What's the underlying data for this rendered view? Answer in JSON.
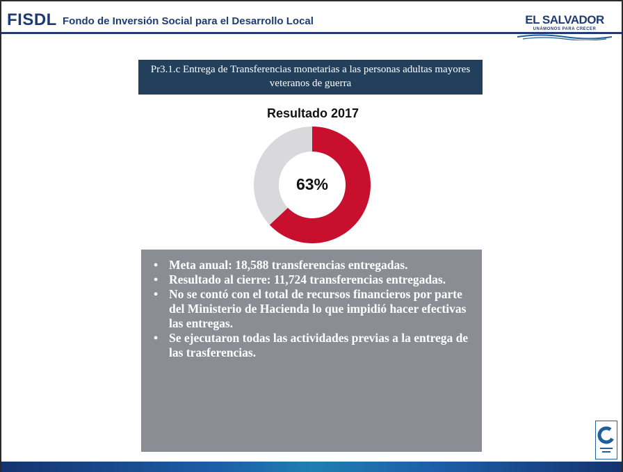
{
  "header": {
    "logo_text": "FISDL",
    "org_name": "Fondo de Inversión Social para el Desarrollo Local",
    "country_name": "EL SALVADOR",
    "country_tagline": "UNÁMONOS PARA CRECER"
  },
  "slide": {
    "title": "Pr3.1.c Entrega de Transferencias monetarias a las personas adultas mayores veteranos de guerra"
  },
  "chart_data": {
    "type": "pie",
    "variant": "donut",
    "title": "Resultado 2017",
    "center_label": "63%",
    "slices": [
      {
        "value": 63,
        "color": "#c8102e"
      },
      {
        "value": 37,
        "color": "#d9d9dc"
      }
    ]
  },
  "notes": {
    "bullet_symbol": "•",
    "bullets": [
      "Meta anual: 18,588 transferencias entregadas.",
      "Resultado al cierre: 11,724 transferencias entregadas.",
      "No se contó con el total de recursos financieros por parte del Ministerio de Hacienda lo que impidió hacer efectivas las entregas.",
      "Se ejecutaron todas las actividades previas a la entrega de las trasferencias."
    ]
  },
  "colors": {
    "brand_blue": "#1f3b73",
    "title_bar": "#22405b",
    "notes_bg": "#8a8d94",
    "donut_red": "#c8102e",
    "donut_gray": "#d9d9dc"
  }
}
